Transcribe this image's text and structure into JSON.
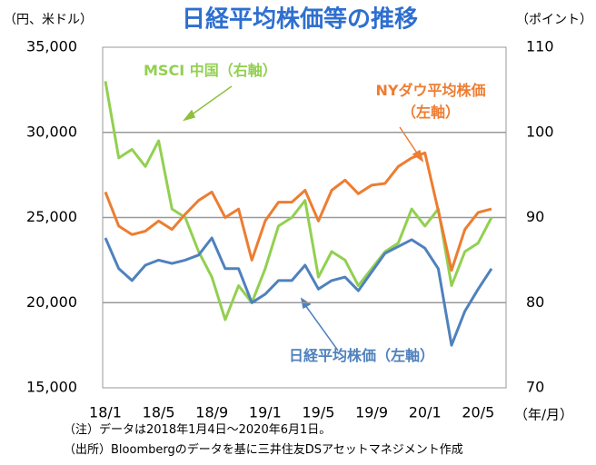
{
  "chart_data": {
    "type": "line",
    "title": "日経平均株価等の推移",
    "y_label": "（円、米ドル）",
    "y2_label": "（ポイント）",
    "x_label": "（年/月）",
    "notes": [
      "（注）データは2018年1月4日～2020年6月1日。",
      "（出所）Bloombergのデータを基に三井住友DSアセットマネジメント作成"
    ],
    "x": [
      "18/1",
      "18/2",
      "18/3",
      "18/4",
      "18/5",
      "18/6",
      "18/7",
      "18/8",
      "18/9",
      "18/10",
      "18/11",
      "18/12",
      "19/1",
      "19/2",
      "19/3",
      "19/4",
      "19/5",
      "19/6",
      "19/7",
      "19/8",
      "19/9",
      "19/10",
      "19/11",
      "19/12",
      "20/1",
      "20/2",
      "20/3",
      "20/4",
      "20/5",
      "20/6"
    ],
    "xticks": [
      "18/1",
      "18/5",
      "18/9",
      "19/1",
      "19/5",
      "19/9",
      "20/1",
      "20/5"
    ],
    "ylim": [
      15000,
      35000
    ],
    "yticks": [
      {
        "value": 15000,
        "label": "15,000"
      },
      {
        "value": 20000,
        "label": "20,000"
      },
      {
        "value": 25000,
        "label": "25,000"
      },
      {
        "value": 30000,
        "label": "30,000"
      },
      {
        "value": 35000,
        "label": "35,000"
      }
    ],
    "y2lim": [
      70,
      110
    ],
    "y2ticks": [
      70,
      80,
      90,
      100,
      110
    ],
    "grid": true,
    "series": [
      {
        "name": "MSCI 中国（右軸）",
        "color": "#92d050",
        "axis": "y2",
        "values": [
          106,
          97,
          98,
          96,
          99,
          91,
          90,
          86,
          83,
          78,
          82,
          80,
          84,
          89,
          90,
          92,
          83,
          86,
          85,
          82,
          84,
          86,
          87,
          91,
          89,
          91,
          82,
          86,
          87,
          90
        ]
      },
      {
        "name": "NYダウ平均株価\n（左軸）",
        "color": "#ed7d31",
        "values": [
          26500,
          24500,
          24000,
          24200,
          24800,
          24300,
          25200,
          26000,
          26500,
          25000,
          25500,
          22500,
          24800,
          25900,
          25900,
          26600,
          24800,
          26600,
          27200,
          26400,
          26900,
          27000,
          28000,
          28500,
          28800,
          25400,
          21900,
          24300,
          25300,
          25500
        ]
      },
      {
        "name": "日経平均株価（左軸）",
        "color": "#4f81bd",
        "values": [
          23800,
          22000,
          21300,
          22200,
          22500,
          22300,
          22500,
          22800,
          23800,
          22000,
          22000,
          20000,
          20500,
          21300,
          21300,
          22200,
          20800,
          21300,
          21500,
          20700,
          21800,
          22900,
          23300,
          23700,
          23200,
          22000,
          17500,
          19500,
          20800,
          22000
        ]
      }
    ]
  }
}
